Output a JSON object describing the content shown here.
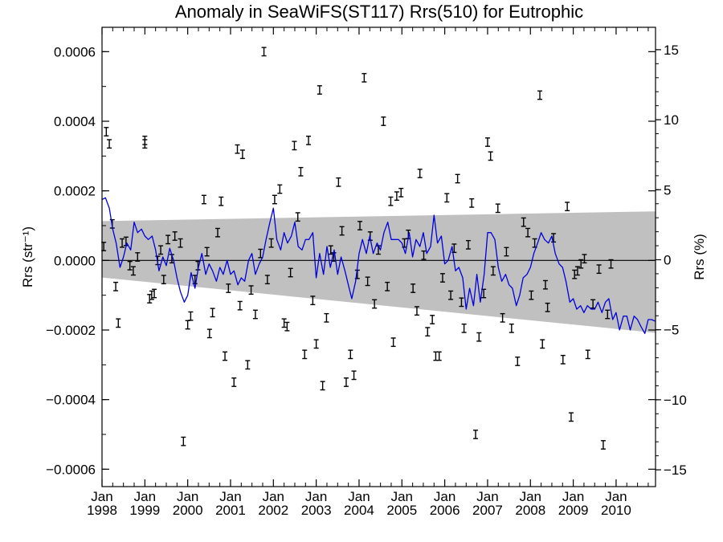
{
  "chart_data": {
    "type": "scatter",
    "title": "Anomaly in SeaWiFS(ST117) Rrs(510) for Eutrophic",
    "xlabel": "",
    "ylabel": "Rrs (str⁻¹)",
    "ylabel_right": "Rrs (%)",
    "xlim": [
      1998.0,
      2010.92
    ],
    "ylim": [
      -0.00065,
      0.00067
    ],
    "ylim_right": [
      -16.2,
      16.6
    ],
    "x_tick_labels": [
      {
        "month": "Jan",
        "year": "1998",
        "x": 1998.0
      },
      {
        "month": "Jan",
        "year": "1999",
        "x": 1999.0
      },
      {
        "month": "Jan",
        "year": "2000",
        "x": 2000.0
      },
      {
        "month": "Jan",
        "year": "2001",
        "x": 2001.0
      },
      {
        "month": "Jan",
        "year": "2002",
        "x": 2002.0
      },
      {
        "month": "Jan",
        "year": "2003",
        "x": 2003.0
      },
      {
        "month": "Jan",
        "year": "2004",
        "x": 2004.0
      },
      {
        "month": "Jan",
        "year": "2005",
        "x": 2005.0
      },
      {
        "month": "Jan",
        "year": "2006",
        "x": 2006.0
      },
      {
        "month": "Jan",
        "year": "2007",
        "x": 2007.0
      },
      {
        "month": "Jan",
        "year": "2008",
        "x": 2008.0
      },
      {
        "month": "Jan",
        "year": "2009",
        "x": 2009.0
      },
      {
        "month": "Jan",
        "year": "2010",
        "x": 2010.0
      }
    ],
    "y_tick_labels": [
      {
        "label": "0.0006",
        "value": 0.0006
      },
      {
        "label": "0.0004",
        "value": 0.0004
      },
      {
        "label": "0.0002",
        "value": 0.0002
      },
      {
        "label": "0.0000",
        "value": 0.0
      },
      {
        "label": "−0.0002",
        "value": -0.0002
      },
      {
        "label": "−0.0004",
        "value": -0.0004
      },
      {
        "label": "−0.0006",
        "value": -0.0006
      }
    ],
    "y_right_tick_labels": [
      {
        "label": "15",
        "value": 15
      },
      {
        "label": "10",
        "value": 10
      },
      {
        "label": "5",
        "value": 5
      },
      {
        "label": "0",
        "value": 0
      },
      {
        "label": "−5",
        "value": -5
      },
      {
        "label": "−10",
        "value": -10
      },
      {
        "label": "−15",
        "value": -15
      }
    ],
    "grid": false,
    "colors": {
      "line": "#0000dd",
      "band": "#c0c0c0",
      "points": "#000000",
      "zero_line": "#000000"
    },
    "confidence_band": {
      "x": [
        1998.0,
        2010.92
      ],
      "upper": [
        0.000113,
        0.000141
      ],
      "lower": [
        -4.9e-05,
        -0.000208
      ]
    },
    "series": [
      {
        "type": "errorbar",
        "error": 1.2e-05,
        "points": [
          [
            1998.04,
            4e-05
          ],
          [
            1998.1,
            0.00037
          ],
          [
            1998.17,
            0.000335
          ],
          [
            1998.24,
            0.000105
          ],
          [
            1998.32,
            -7.5e-05
          ],
          [
            1998.38,
            -0.00018
          ],
          [
            1998.47,
            5e-05
          ],
          [
            1998.56,
            5.5e-05
          ],
          [
            1998.65,
            -1.5e-05
          ],
          [
            1998.73,
            -3e-05
          ],
          [
            1998.83,
            1e-05
          ],
          [
            1999.0,
            0.000335
          ],
          [
            1999.0,
            0.000345
          ],
          [
            1999.11,
            -0.00011
          ],
          [
            1999.16,
            -0.0001
          ],
          [
            1999.22,
            -9.5e-05
          ],
          [
            1999.3,
            0.0
          ],
          [
            1999.37,
            3e-05
          ],
          [
            1999.44,
            -5.5e-05
          ],
          [
            1999.54,
            6e-05
          ],
          [
            1999.63,
            5e-06
          ],
          [
            1999.7,
            7e-05
          ],
          [
            1999.83,
            5e-05
          ],
          [
            1999.9,
            -0.00052
          ],
          [
            2000.0,
            -0.000185
          ],
          [
            2000.07,
            -0.00016
          ],
          [
            2000.17,
            -5.5e-05
          ],
          [
            2000.24,
            -1.5e-05
          ],
          [
            2000.38,
            0.000175
          ],
          [
            2000.45,
            2.5e-05
          ],
          [
            2000.51,
            -0.00021
          ],
          [
            2000.58,
            -0.00015
          ],
          [
            2000.7,
            8e-05
          ],
          [
            2000.78,
            0.00017
          ],
          [
            2000.87,
            -0.000275
          ],
          [
            2000.95,
            -8e-05
          ],
          [
            2001.08,
            -0.00035
          ],
          [
            2001.16,
            0.00032
          ],
          [
            2001.22,
            -0.00013
          ],
          [
            2001.28,
            0.000305
          ],
          [
            2001.4,
            -0.0003
          ],
          [
            2001.48,
            -8.5e-05
          ],
          [
            2001.58,
            -0.000155
          ],
          [
            2001.7,
            2e-05
          ],
          [
            2001.78,
            0.0006
          ],
          [
            2001.86,
            -5.5e-05
          ],
          [
            2001.95,
            5e-05
          ],
          [
            2002.03,
            0.000175
          ],
          [
            2002.15,
            0.000205
          ],
          [
            2002.25,
            -0.00018
          ],
          [
            2002.32,
            -0.00019
          ],
          [
            2002.4,
            -3.5e-05
          ],
          [
            2002.49,
            0.00033
          ],
          [
            2002.57,
            0.000125
          ],
          [
            2002.64,
            0.000255
          ],
          [
            2002.73,
            -0.00027
          ],
          [
            2002.82,
            0.000345
          ],
          [
            2002.92,
            -0.000115
          ],
          [
            2003.0,
            -0.00024
          ],
          [
            2003.08,
            0.00049
          ],
          [
            2003.15,
            -0.00036
          ],
          [
            2003.24,
            -0.000165
          ],
          [
            2003.34,
            3e-05
          ],
          [
            2003.41,
            1e-05
          ],
          [
            2003.52,
            0.000225
          ],
          [
            2003.6,
            8.5e-05
          ],
          [
            2003.7,
            -0.00035
          ],
          [
            2003.8,
            -0.00027
          ],
          [
            2003.88,
            -0.00033
          ],
          [
            2003.96,
            -4e-05
          ],
          [
            2004.02,
            0.0001
          ],
          [
            2004.12,
            0.000525
          ],
          [
            2004.2,
            -6e-05
          ],
          [
            2004.26,
            7e-05
          ],
          [
            2004.36,
            -0.000125
          ],
          [
            2004.45,
            3e-05
          ],
          [
            2004.57,
            0.0004
          ],
          [
            2004.66,
            -7.5e-05
          ],
          [
            2004.74,
            0.00017
          ],
          [
            2004.8,
            -0.000235
          ],
          [
            2004.88,
            0.000185
          ],
          [
            2004.98,
            0.000195
          ],
          [
            2005.06,
            5e-05
          ],
          [
            2005.15,
            7.5e-05
          ],
          [
            2005.26,
            -8e-05
          ],
          [
            2005.35,
            -0.000145
          ],
          [
            2005.42,
            0.00025
          ],
          [
            2005.51,
            1.5e-05
          ],
          [
            2005.6,
            -0.000205
          ],
          [
            2005.71,
            -0.00017
          ],
          [
            2005.79,
            -0.000275
          ],
          [
            2005.87,
            -0.000275
          ],
          [
            2005.95,
            -5e-05
          ],
          [
            2006.05,
            0.00018
          ],
          [
            2006.14,
            -0.0001
          ],
          [
            2006.22,
            3.5e-05
          ],
          [
            2006.3,
            0.000235
          ],
          [
            2006.39,
            -0.00012
          ],
          [
            2006.45,
            -0.000195
          ],
          [
            2006.55,
            4.5e-05
          ],
          [
            2006.63,
            0.000165
          ],
          [
            2006.72,
            -0.0005
          ],
          [
            2006.8,
            -0.00022
          ],
          [
            2006.91,
            -9.5e-05
          ],
          [
            2007.0,
            0.00034
          ],
          [
            2007.07,
            0.0003
          ],
          [
            2007.13,
            -3e-05
          ],
          [
            2007.24,
            0.00015
          ],
          [
            2007.35,
            -0.000165
          ],
          [
            2007.44,
            2.5e-05
          ],
          [
            2007.56,
            -0.000195
          ],
          [
            2007.7,
            -0.00029
          ],
          [
            2007.84,
            0.00011
          ],
          [
            2007.94,
            8e-05
          ],
          [
            2008.02,
            -0.0001
          ],
          [
            2008.1,
            5e-05
          ],
          [
            2008.22,
            0.000475
          ],
          [
            2008.28,
            -0.00024
          ],
          [
            2008.35,
            -7e-05
          ],
          [
            2008.4,
            -0.000135
          ],
          [
            2008.54,
            6.5e-05
          ],
          [
            2008.76,
            -0.000285
          ],
          [
            2008.86,
            0.000155
          ],
          [
            2008.95,
            -0.00045
          ],
          [
            2009.03,
            -4e-05
          ],
          [
            2009.1,
            -3e-05
          ],
          [
            2009.18,
            -1e-05
          ],
          [
            2009.26,
            5e-06
          ],
          [
            2009.34,
            -0.00027
          ],
          [
            2009.46,
            -0.000125
          ],
          [
            2009.6,
            -2.5e-05
          ],
          [
            2009.7,
            -0.00053
          ],
          [
            2009.8,
            -0.000155
          ],
          [
            2009.88,
            -1e-05
          ]
        ]
      },
      {
        "type": "line",
        "x": [
          1998.0,
          1998.08,
          1998.17,
          1998.25,
          1998.33,
          1998.42,
          1998.5,
          1998.58,
          1998.67,
          1998.75,
          1998.83,
          1998.92,
          1999.0,
          1999.08,
          1999.17,
          1999.25,
          1999.33,
          1999.42,
          1999.5,
          1999.58,
          1999.67,
          1999.75,
          1999.83,
          1999.92,
          2000.0,
          2000.08,
          2000.17,
          2000.25,
          2000.33,
          2000.42,
          2000.5,
          2000.58,
          2000.67,
          2000.75,
          2000.83,
          2000.92,
          2001.0,
          2001.08,
          2001.17,
          2001.25,
          2001.33,
          2001.42,
          2001.5,
          2001.58,
          2001.67,
          2001.75,
          2001.83,
          2001.92,
          2002.0,
          2002.08,
          2002.17,
          2002.25,
          2002.33,
          2002.42,
          2002.5,
          2002.58,
          2002.67,
          2002.75,
          2002.83,
          2002.92,
          2003.0,
          2003.08,
          2003.17,
          2003.25,
          2003.33,
          2003.42,
          2003.5,
          2003.58,
          2003.67,
          2003.75,
          2003.83,
          2003.92,
          2004.0,
          2004.08,
          2004.17,
          2004.25,
          2004.33,
          2004.42,
          2004.5,
          2004.58,
          2004.67,
          2004.75,
          2004.83,
          2004.92,
          2005.0,
          2005.08,
          2005.17,
          2005.25,
          2005.33,
          2005.42,
          2005.5,
          2005.58,
          2005.67,
          2005.75,
          2005.83,
          2005.92,
          2006.0,
          2006.08,
          2006.17,
          2006.25,
          2006.33,
          2006.42,
          2006.5,
          2006.58,
          2006.67,
          2006.75,
          2006.83,
          2006.92,
          2007.0,
          2007.08,
          2007.17,
          2007.25,
          2007.33,
          2007.42,
          2007.5,
          2007.58,
          2007.67,
          2007.75,
          2007.83,
          2007.92,
          2008.0,
          2008.08,
          2008.17,
          2008.25,
          2008.33,
          2008.42,
          2008.5,
          2008.58,
          2008.67,
          2008.75,
          2008.83,
          2008.92,
          2009.0,
          2009.08,
          2009.17,
          2009.25,
          2009.33,
          2009.42,
          2009.5,
          2009.58,
          2009.67,
          2009.75,
          2009.83,
          2009.92,
          2010.0,
          2010.08,
          2010.17,
          2010.25,
          2010.33,
          2010.42,
          2010.5,
          2010.58,
          2010.67,
          2010.75,
          2010.83,
          2010.92
        ],
        "y": [
          0.000175,
          0.00018,
          0.00015,
          9e-05,
          5e-05,
          -2e-05,
          1e-05,
          5e-05,
          3e-05,
          0.00011,
          8e-05,
          9e-05,
          7e-05,
          6e-05,
          7e-05,
          3e-05,
          -3e-05,
          1e-05,
          -1.5e-05,
          3.5e-05,
          0.0,
          -5e-05,
          -9e-05,
          -0.00012,
          -0.0001,
          -3.5e-05,
          -8e-05,
          -2e-05,
          2e-05,
          -4e-05,
          -1e-05,
          -3e-05,
          -6e-05,
          -2e-05,
          -4e-05,
          0.0,
          -4e-05,
          -3e-05,
          -7e-05,
          -5e-05,
          -6e-05,
          0.0,
          2e-05,
          -4e-05,
          -1e-05,
          1e-05,
          6e-05,
          0.00011,
          0.00015,
          6e-05,
          3e-05,
          8e-05,
          5e-05,
          7e-05,
          0.00011,
          4e-05,
          3e-05,
          6e-05,
          6e-05,
          8e-05,
          -5e-05,
          2e-05,
          -4e-05,
          4e-05,
          -2e-05,
          3e-05,
          -4e-05,
          1e-05,
          -3e-05,
          -7e-05,
          -0.00011,
          -6e-05,
          2e-05,
          6e-05,
          2e-05,
          7e-05,
          2e-05,
          5e-05,
          3e-05,
          8e-05,
          0.00011,
          6e-05,
          6e-05,
          6e-05,
          5e-05,
          2e-05,
          8e-05,
          1e-05,
          6e-05,
          4e-05,
          8e-05,
          2e-05,
          4e-05,
          0.00013,
          5e-05,
          7e-05,
          -1e-05,
          0.0,
          4e-05,
          -3e-05,
          -2e-05,
          -5e-05,
          -0.00014,
          -8e-05,
          -0.00013,
          -4e-05,
          -0.00012,
          -4e-05,
          8e-05,
          8e-05,
          6e-05,
          -2e-05,
          -6e-05,
          -4e-05,
          -7e-05,
          -8e-05,
          -0.00013,
          -0.0001,
          -5e-05,
          -4e-05,
          -2e-05,
          2e-05,
          5e-05,
          8e-05,
          6e-05,
          5e-05,
          7e-05,
          2e-05,
          -1e-05,
          -2e-05,
          -6e-05,
          -0.00012,
          -0.00011,
          -0.00014,
          -0.00013,
          -0.00015,
          -0.00013,
          -0.00014,
          -0.00014,
          -0.00012,
          -0.00015,
          -0.00012,
          -0.00011,
          -0.00017,
          -0.00015,
          -0.0002,
          -0.00016,
          -0.00016,
          -0.0002,
          -0.00016,
          -0.00017,
          -0.00019,
          -0.00021,
          -0.00017,
          -0.00017,
          -0.000175
        ]
      }
    ]
  }
}
